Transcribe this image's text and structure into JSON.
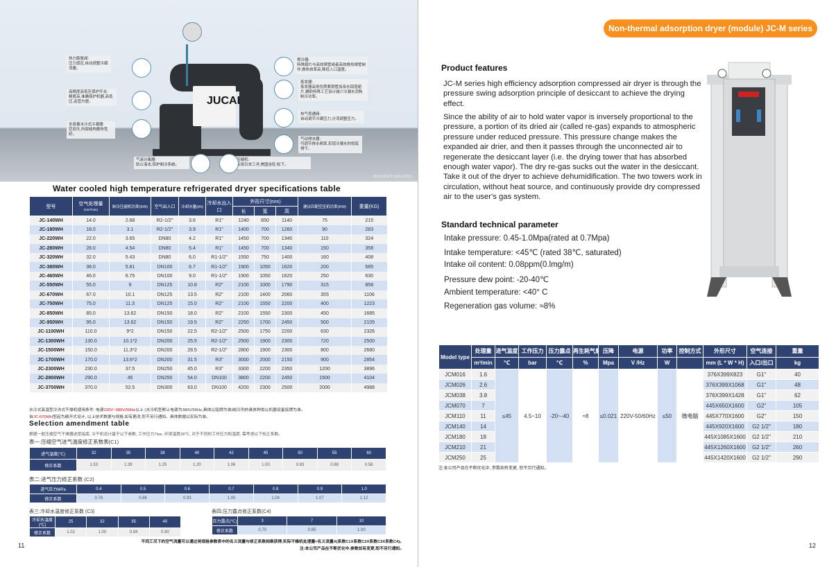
{
  "left_page": {
    "hero": {
      "brand": "JUCAI",
      "callouts": [
        {
          "title": "热力膨胀阀:",
          "text": "压力感应,自动调整冷媒流量。"
        },
        {
          "title": "高精度高低压保护开关:",
          "text": "精度高,准确保护机器,高低压,运营方便。"
        },
        {
          "title": "全容量水冷式冷凝器:",
          "text": "空间大,内部结构散热性好。"
        },
        {
          "title": "预冷器:",
          "text": "特殊翅片与高效铜管或者高效换热钢管制作,换热效率高,降低入口温度。"
        },
        {
          "title": "蒸发器:",
          "text": "蒸发器采用优质紫铜管加亲水铝箔翅片,辅助特殊工艺设计减少冷凝水消耗制冷功率。"
        },
        {
          "title": "热气旁通阀:",
          "text": "自动调节冷媒压力,分流调整压力。"
        },
        {
          "title": "气动排水器:",
          "text": "可调节排水频率,实现冷凝水的彻底排干。"
        },
        {
          "title": "气液分离器:",
          "text": "防止液击,保护制冷系统。"
        },
        {
          "title": "压缩机:",
          "text": "采用日本三洋,美国谷轮,松下。"
        }
      ],
      "image_note": "(图片仅供参考,具体以实物为"
    },
    "spec_title": "Water cooled high temperature refrigerated dryer specifications table",
    "spec_headers": {
      "model": "型号",
      "flow": "空气处理量",
      "flow_unit": "(Nm³/min)",
      "comp_power": "制冷压缩机功率(KW)",
      "air_port": "空气出入口",
      "water_flow": "冷却水量(t/h)",
      "water_port": "冷却水出入口",
      "dims": "外形尺寸(mm)",
      "len": "长",
      "wid": "宽",
      "hgt": "高",
      "rec_power": "建议匹配空压机功率(KW)",
      "weight": "重量(KG)"
    },
    "spec_rows": [
      [
        "JC-140WH",
        "14.0",
        "2.68",
        "R2-1/2\"",
        "3.6",
        "R1\"",
        "1240",
        "650",
        "1140",
        "75",
        "215"
      ],
      [
        "JC-180WH",
        "18.0",
        "3.1",
        "R2-1/2\"",
        "3.9",
        "R1\"",
        "1400",
        "700",
        "1260",
        "90",
        "283"
      ],
      [
        "JC-220WH",
        "22.0",
        "3.65",
        "DN80",
        "4.2",
        "R1\"",
        "1450",
        "700",
        "1340",
        "110",
        "324"
      ],
      [
        "JC-280WH",
        "28.0",
        "4.54",
        "DN80",
        "5.4",
        "R1\"",
        "1450",
        "700",
        "1340",
        "150",
        "358"
      ],
      [
        "JC-320WH",
        "32.0",
        "5.43",
        "DN80",
        "6.0",
        "R1-1/2\"",
        "1550",
        "750",
        "1400",
        "160",
        "408"
      ],
      [
        "JC-380WH",
        "38.0",
        "5.81",
        "DN100",
        "6.7",
        "R1-1/2\"",
        "1900",
        "1050",
        "1620",
        "200",
        "585"
      ],
      [
        "JC-460WH",
        "46.0",
        "6.75",
        "DN100",
        "9.0",
        "R1-1/2\"",
        "1900",
        "1050",
        "1620",
        "250",
        "630"
      ],
      [
        "JC-550WH",
        "55.0",
        "9",
        "DN125",
        "10.8",
        "R2\"",
        "2100",
        "1000",
        "1790",
        "315",
        "858"
      ],
      [
        "JC-670WH",
        "67.0",
        "10.1",
        "DN125",
        "13.5",
        "R2\"",
        "2100",
        "1400",
        "2060",
        "355",
        "1106"
      ],
      [
        "JC-750WH",
        "75.0",
        "11.3",
        "DN125",
        "15.0",
        "R2\"",
        "2100",
        "1550",
        "2200",
        "400",
        "1223"
      ],
      [
        "JC-850WH",
        "85.0",
        "13.62",
        "DN150",
        "18.0",
        "R2\"",
        "2100",
        "1550",
        "2300",
        "450",
        "1685"
      ],
      [
        "JC-950WH",
        "95.0",
        "13.62",
        "DN150",
        "19.5",
        "R2\"",
        "2250",
        "1700",
        "2450",
        "500",
        "2105"
      ],
      [
        "JC-1100WH",
        "110.0",
        "9*2",
        "DN150",
        "22.5",
        "R2-1/2\"",
        "2500",
        "1750",
        "2200",
        "630",
        "2326"
      ],
      [
        "JC-1300WH",
        "130.0",
        "10.1*2",
        "DN200",
        "25.5",
        "R2-1/2\"",
        "2500",
        "1900",
        "2300",
        "720",
        "2500"
      ],
      [
        "JC-1500WH",
        "150.0",
        "11.3*2",
        "DN200",
        "28.5",
        "R2-1/2\"",
        "2800",
        "1900",
        "2300",
        "800",
        "2680"
      ],
      [
        "JC-1700WH",
        "170.0",
        "13.6*2",
        "DN200",
        "31.5",
        "R3\"",
        "3000",
        "2000",
        "2150",
        "900",
        "2854"
      ],
      [
        "JC-2300WH",
        "230.0",
        "37.5",
        "DN250",
        "45.0",
        "R3\"",
        "3300",
        "2200",
        "2350",
        "1200",
        "3896"
      ],
      [
        "JC-2900WH",
        "290.0",
        "45",
        "DN250",
        "54.0",
        "DN100",
        "3800",
        "2200",
        "2450",
        "1500",
        "4104"
      ],
      [
        "JC-3700WH",
        "370.0",
        "52.5",
        "DN300",
        "63.0",
        "DN100",
        "4200",
        "2300",
        "2500",
        "2000",
        "4988"
      ]
    ],
    "spec_note1_a": "水冷式高温型冷冻式干燥机使用条件: 电源",
    "spec_note1_b": "220V~380V/50Hz",
    "spec_note1_c": "以上 (水冷机型默认电源为380V/50Hz,具体以铭牌为准)制冷剂的具体种类以机器设备铭牌为准。",
    "spec_note2_a": "自",
    "spec_note2_b": "JC-670WH",
    "spec_note2_c": "型起为敞开式设计, 以上技术数据与规格,如有更改,恕不另行通知。具体数据以实际为准。",
    "sel_title": "Selection amendment table",
    "sel_desc": "根据一般压缩空气干燥器选型指南, 冷干机设计基于以下参数, 工作压力7bar, 环境温度38℃, 对于不同的工作压力和温度, 需考虑以下校正系数。",
    "c1": {
      "title": "表一:压缩空气进气温度修正系数表(C1)",
      "row_label": "进气温度(℃)",
      "coef_label": "修正系数",
      "keys": [
        "32",
        "35",
        "38",
        "40",
        "42",
        "45",
        "50",
        "55",
        "60"
      ],
      "values": [
        "1.53",
        "1.39",
        "1.25",
        "1.20",
        "1.06",
        "1.00",
        "0.83",
        "0.68",
        "0.58"
      ]
    },
    "c2": {
      "title": "表二:进气压力修正系数 (C2)",
      "row_label": "进气压力MPa",
      "coef_label": "修正系数",
      "keys": [
        "0.4",
        "0.5",
        "0.6",
        "0.7",
        "0.8",
        "0.9",
        "1.0"
      ],
      "values": [
        "0.76",
        "0.86",
        "0.93",
        "1.00",
        "1.04",
        "1.07",
        "1.12"
      ]
    },
    "c3": {
      "title": "表三:冷却水温度修正系数 (C3)",
      "row_label": "冷却水温度(℃)",
      "coef_label": "修正系数",
      "keys": [
        "25",
        "32",
        "35",
        "40"
      ],
      "values": [
        "1.02",
        "1.00",
        "0.94",
        "0.90"
      ]
    },
    "c4": {
      "title": "表四:压力露点修正系数(C4)",
      "row_label": "压力露点(℃)",
      "coef_label": "修正系数",
      "keys": [
        "3",
        "7",
        "10"
      ],
      "values": [
        "0.70",
        "0.85",
        "1.00"
      ]
    },
    "footer1": "不同工况下的空气流量可以通过将规格参数表中的名义流量与修正系数相乘获得,实际干燥机处理量=名义流量X(系数C1X系数C2X系数C3X系数C4)。",
    "footer2": "注:本公司产品在不断优化中,参数如有变更,恕不另行通知。",
    "page_number": "11"
  },
  "right_page": {
    "series_badge": "Non-thermal adsorption dryer (module) JC-M series",
    "features_title": "Product features",
    "features_p1": "JC-M series high efficiency adsorption compressed air dryer is through the pressure swing adsorption principle of desiccant to achieve the drying effect.",
    "features_p2": "Since the ability of air to hold water vapor is inversely proportional to the pressure, a portion of its dried air (called re-gas) expands to atmospheric pressure under reduced pressure. This pressure change makes the expanded air drier, and then it passes through the unconnected air to regenerate the desiccant layer (i.e. the drying tower that has absorbed enough water vapor). The dry re-gas sucks out the water in the desiccant. Take it out of the dryer to achieve dehumidification. The two towers work in circulation, without heat source, and continuously provide dry compressed air to the user's gas system.",
    "params_title": "Standard technical parameter",
    "params": [
      "Intake pressure: 0.45-1.0Mpa(rated at 0.7Mpa)",
      "Intake temperature: <45℃ (rated 38℃, saturated)",
      "Intake oil content: 0.08ppm(0.lmg/m)",
      "Pressure dew point: -20-40℃",
      "Ambient temperature: <40° C",
      "Regeneration gas volume: ≈8%"
    ],
    "jcm_headers": [
      "Model type",
      "处理量",
      "进气温度",
      "工作压力",
      "压力露点",
      "再生耗气量",
      "压降",
      "电源",
      "功率",
      "控制方式",
      "外形尺寸",
      "空气连接",
      "重量"
    ],
    "jcm_units": [
      "m³/min",
      "℃",
      "bar",
      "℃",
      "%",
      "Mpa",
      "V /Hz",
      "W",
      "",
      "mm (L * W * H)",
      "入口/出口",
      "kg"
    ],
    "jcm_shared": [
      "≤45",
      "4.5~10",
      "-20~-40",
      "≈8",
      "≤0.021",
      "220V-50/60Hz",
      "≤50",
      "微电脑"
    ],
    "jcm_rows": [
      [
        "JCM016",
        "1.6",
        "376X399X823",
        "G1\"",
        "40"
      ],
      [
        "JCM026",
        "2.6",
        "376X399X1068",
        "G1\"",
        "48"
      ],
      [
        "JCM038",
        "3.8",
        "376X399X1428",
        "G1\"",
        "62"
      ],
      [
        "JCM070",
        "7",
        "445X650X1600",
        "G2\"",
        "105"
      ],
      [
        "JCM110",
        "11",
        "445X770X1600",
        "G2\"",
        "150"
      ],
      [
        "JCM140",
        "14",
        "445X920X1600",
        "G2 1/2\"",
        "180"
      ],
      [
        "JCM180",
        "18",
        "445X1085X1600",
        "G2 1/2\"",
        "210"
      ],
      [
        "JCM210",
        "21",
        "445X1260X1600",
        "G2 1/2\"",
        "260"
      ],
      [
        "JCM250",
        "25",
        "445X1420X1600",
        "G2 1/2\"",
        "290"
      ]
    ],
    "jcm_note": "注:本公司产品在不断优化中, 参数如有变更, 恕不另行通知。",
    "page_number": "12"
  },
  "colors": {
    "header_navy": "#2f4373",
    "row_blue": "#d3dff2",
    "row_grey": "#f1f1f1",
    "badge_orange": "#f7901e",
    "note_red": "#cc0000"
  }
}
